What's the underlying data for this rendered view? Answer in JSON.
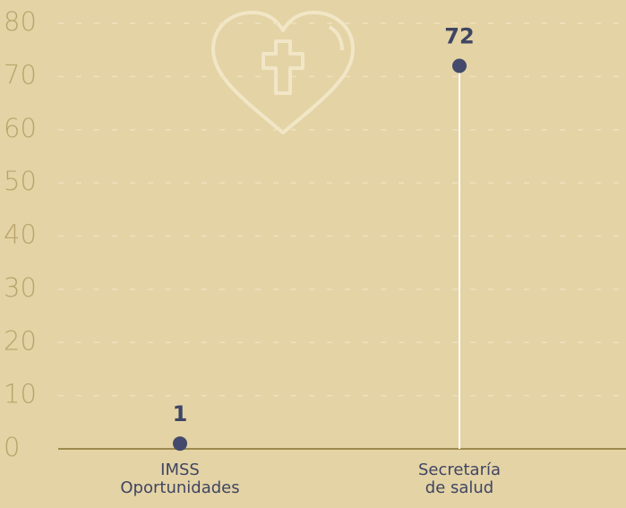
{
  "chart_data": {
    "type": "lollipop",
    "categories": [
      "IMSS\nOportunidades",
      "Secretaría\nde salud"
    ],
    "values": [
      1,
      72
    ],
    "color": "#434a6b",
    "stem_color": "#ffffff",
    "ylim": [
      0,
      80
    ],
    "yticks": [
      0,
      10,
      20,
      30,
      40,
      50,
      60,
      70,
      80
    ],
    "grid": true
  }
}
